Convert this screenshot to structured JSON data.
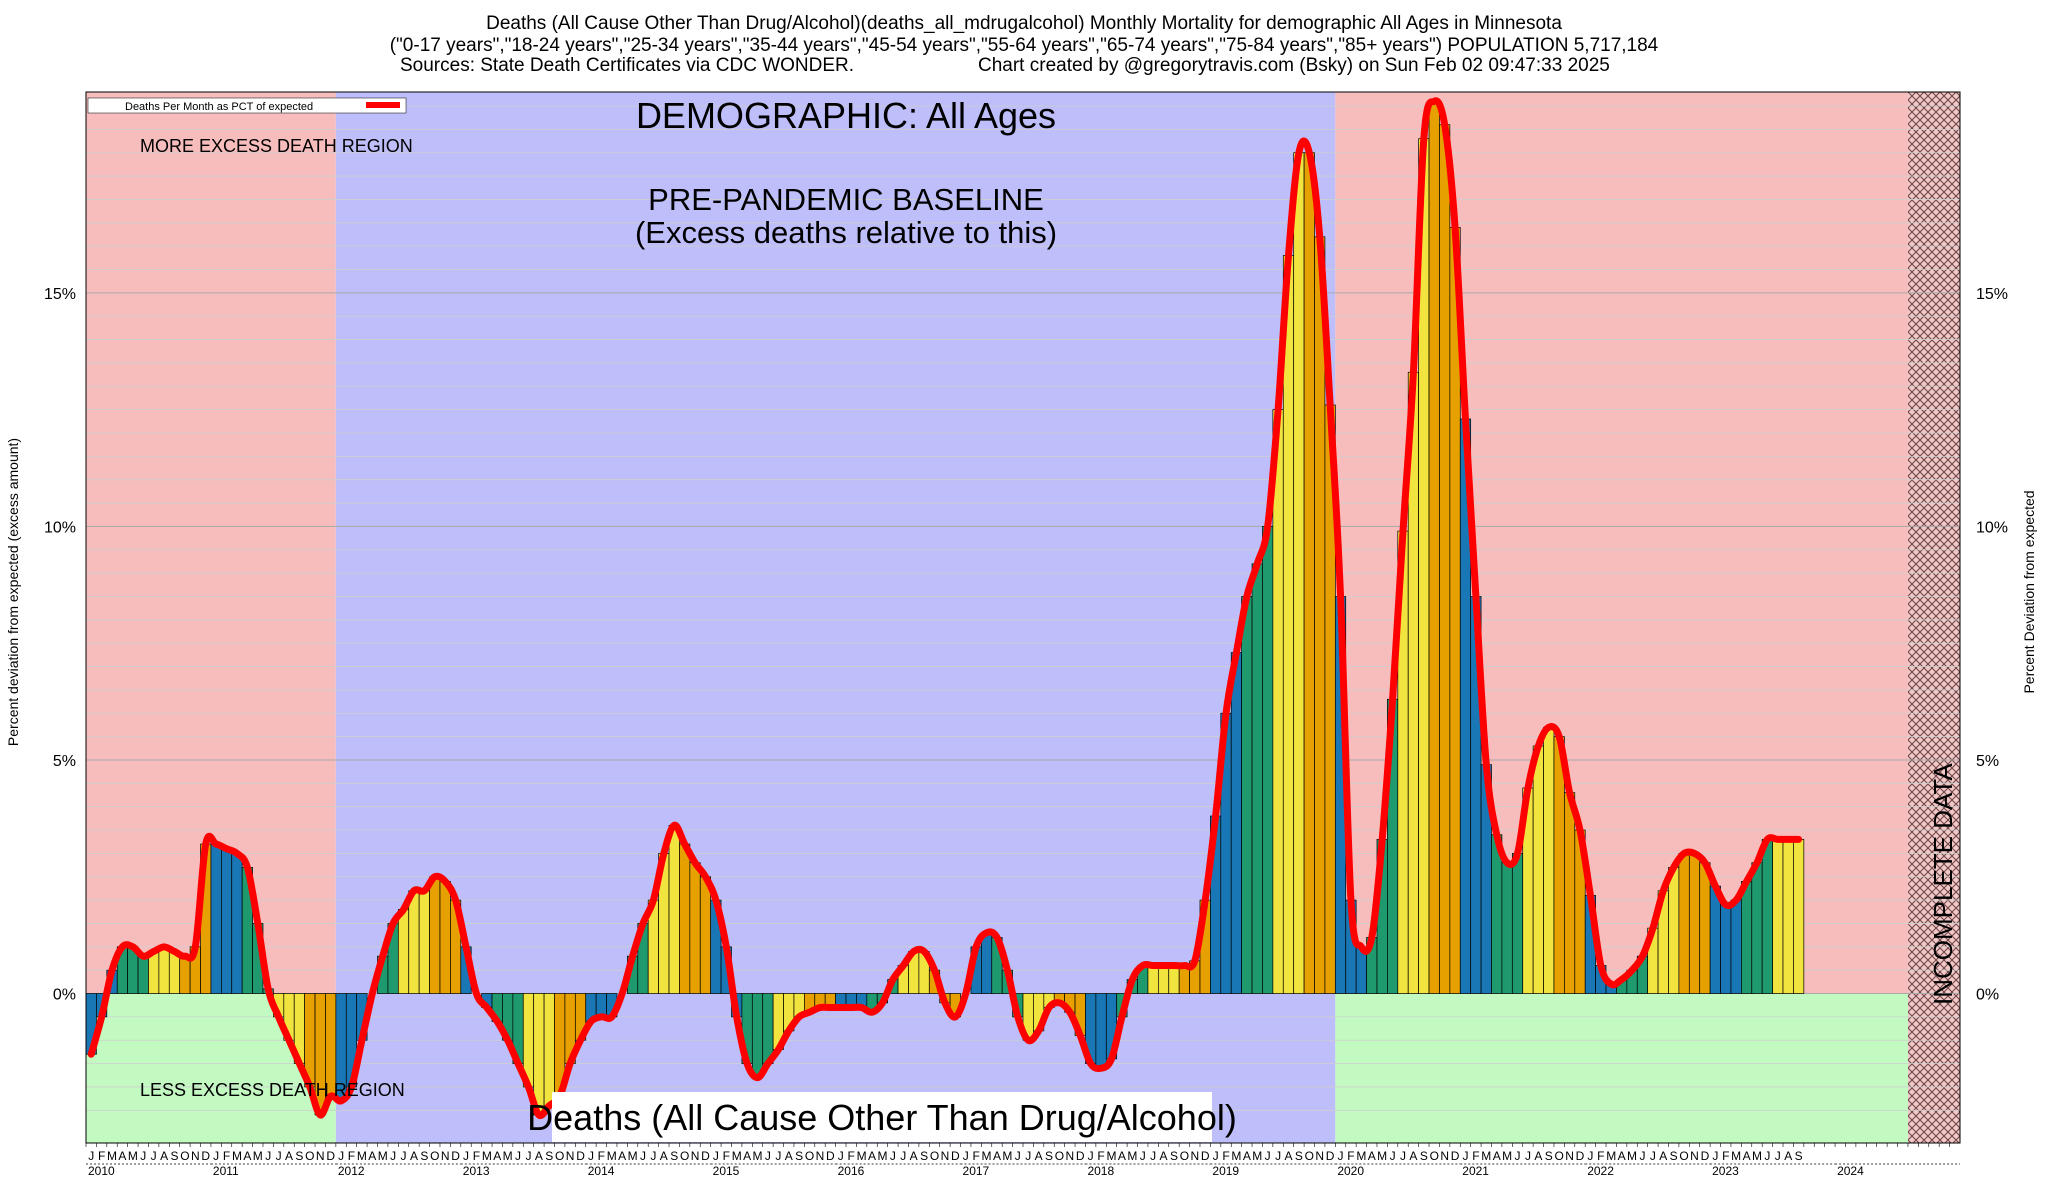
{
  "header": {
    "title_line1": "Deaths (All Cause Other Than Drug/Alcohol)(deaths_all_mdrugalcohol) Monthly Mortality for demographic All Ages in Minnesota",
    "title_line2": "(\"0-17 years\",\"18-24 years\",\"25-34 years\",\"35-44 years\",\"45-54 years\",\"55-64 years\",\"65-74 years\",\"75-84 years\",\"85+ years\") POPULATION 5,717,184",
    "sources": "Sources: State Death Certificates via CDC WONDER.",
    "credit": "Chart created by @gregorytravis.com (Bsky) on Sun Feb 02 09:47:33 2025"
  },
  "chart_data": {
    "type": "bar",
    "title": "DEMOGRAPHIC: All Ages",
    "bottom_title": "Deaths (All Cause Other Than Drug/Alcohol)",
    "ylabel_left": "Percent deviation from expected (excess amount)",
    "ylabel_right": "Percent Deviation from expected",
    "legend_label": "Deaths Per Month as PCT of expected",
    "legend_position": "top-left",
    "ylim": [
      -3.2,
      19.3
    ],
    "yticks": [
      0,
      5,
      10,
      15
    ],
    "ytick_labels": [
      "0%",
      "5%",
      "10%",
      "15%"
    ],
    "grid": true,
    "x_start": "2010-01",
    "month_letters": [
      "J",
      "F",
      "M",
      "A",
      "M",
      "J",
      "J",
      "A",
      "S",
      "O",
      "N",
      "D"
    ],
    "years": [
      "2010",
      "2011",
      "2012",
      "2013",
      "2014",
      "2015",
      "2016",
      "2017",
      "2018",
      "2019",
      "2020",
      "2021",
      "2022",
      "2023",
      "2024"
    ],
    "values": [
      -1.3,
      -0.5,
      0.5,
      1.0,
      1.0,
      0.8,
      0.9,
      1.0,
      0.9,
      0.8,
      1.0,
      3.2,
      3.2,
      3.1,
      3.0,
      2.7,
      1.5,
      0.1,
      -0.5,
      -1.0,
      -1.5,
      -2.0,
      -2.6,
      -2.2,
      -2.3,
      -2.0,
      -1.0,
      0.0,
      0.8,
      1.5,
      1.8,
      2.2,
      2.2,
      2.5,
      2.4,
      2.0,
      1.0,
      0.0,
      -0.3,
      -0.6,
      -1.0,
      -1.5,
      -2.0,
      -2.6,
      -2.4,
      -2.2,
      -1.5,
      -1.0,
      -0.6,
      -0.5,
      -0.5,
      0.0,
      0.8,
      1.5,
      2.0,
      3.0,
      3.6,
      3.2,
      2.8,
      2.5,
      2.0,
      1.0,
      -0.5,
      -1.5,
      -1.8,
      -1.5,
      -1.2,
      -0.8,
      -0.5,
      -0.4,
      -0.3,
      -0.3,
      -0.3,
      -0.3,
      -0.3,
      -0.4,
      -0.2,
      0.3,
      0.6,
      0.9,
      0.9,
      0.5,
      -0.2,
      -0.5,
      0.0,
      1.0,
      1.3,
      1.2,
      0.5,
      -0.5,
      -1.0,
      -0.8,
      -0.3,
      -0.2,
      -0.4,
      -0.9,
      -1.5,
      -1.6,
      -1.4,
      -0.5,
      0.3,
      0.6,
      0.6,
      0.6,
      0.6,
      0.6,
      0.7,
      2.0,
      3.8,
      6.0,
      7.3,
      8.5,
      9.2,
      10.0,
      12.5,
      15.8,
      18.0,
      18.0,
      16.2,
      12.6,
      8.5,
      2.0,
      1.0,
      1.2,
      3.3,
      6.3,
      9.9,
      13.3,
      18.3,
      19.1,
      18.6,
      16.4,
      12.3,
      8.5,
      4.9,
      3.4,
      2.8,
      3.0,
      4.4,
      5.3,
      5.7,
      5.5,
      4.3,
      3.5,
      2.1,
      0.6,
      0.2,
      0.3,
      0.5,
      0.8,
      1.4,
      2.2,
      2.7,
      3.0,
      3.0,
      2.8,
      2.3,
      1.9,
      2.0,
      2.4,
      2.8,
      3.3,
      3.3,
      3.3,
      3.3
    ],
    "bar_colors": [
      "#1a77b5",
      "#1f9a6e",
      "#f2e43e",
      "#e6a100"
    ],
    "line_color": "#ff0000",
    "region_colors": {
      "excess": "#f7bdbd",
      "baseline": "#bebefa",
      "less": "#c2fac2",
      "incomplete": "#f0c8c8"
    },
    "regions": {
      "baseline_label_1": "PRE-PANDEMIC BASELINE",
      "baseline_label_2": "(Excess deaths relative to this)",
      "more_label": "MORE EXCESS DEATH REGION",
      "less_label": "LESS EXCESS DEATH REGION",
      "incomplete_label": "INCOMPLETE DATA",
      "baseline_start": "2012-01",
      "baseline_end": "2019-12",
      "incomplete_start": "2024-08"
    }
  }
}
